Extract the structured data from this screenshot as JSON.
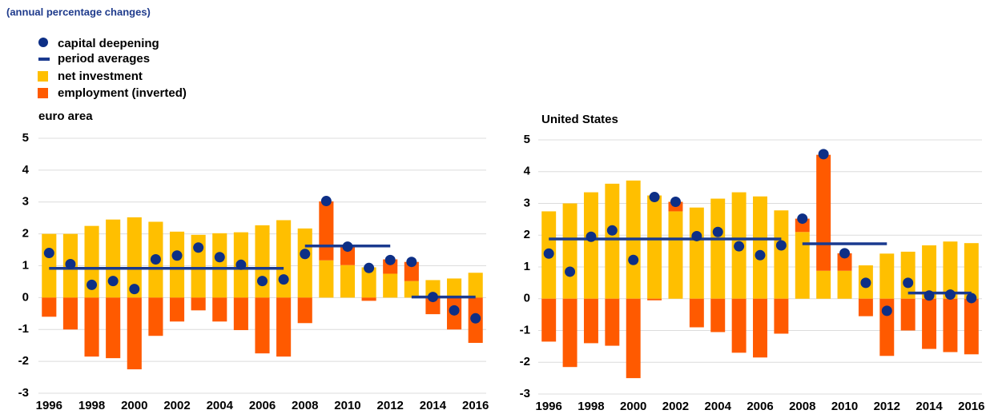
{
  "subtitle": "(annual percentage changes)",
  "chart_data": [
    {
      "type": "bar",
      "title": "euro area",
      "x": [
        1996,
        1997,
        1998,
        1999,
        2000,
        2001,
        2002,
        2003,
        2004,
        2005,
        2006,
        2007,
        2008,
        2009,
        2010,
        2011,
        2012,
        2013,
        2014,
        2015,
        2016
      ],
      "xlim": [
        1995.5,
        2016.5
      ],
      "xticks": [
        1996,
        1998,
        2000,
        2002,
        2004,
        2006,
        2008,
        2010,
        2012,
        2014,
        2016
      ],
      "ylim": [
        -3,
        5
      ],
      "yticks": [
        -3,
        -2,
        -1,
        0,
        1,
        2,
        3,
        4,
        5
      ],
      "grid": true,
      "stacked": true,
      "series": [
        {
          "name": "capital deepening",
          "type": "scatter",
          "color": "#0d2f86",
          "values": [
            1.4,
            1.05,
            0.4,
            0.52,
            0.27,
            1.2,
            1.32,
            1.57,
            1.27,
            1.03,
            0.52,
            0.57,
            1.37,
            3.03,
            1.6,
            0.93,
            1.18,
            1.12,
            0.02,
            -0.4,
            -0.65
          ]
        },
        {
          "name": "net investment",
          "type": "bar",
          "color": "#ffbf00",
          "values": [
            2.0,
            2.0,
            2.25,
            2.45,
            2.52,
            2.38,
            2.07,
            1.97,
            2.02,
            2.05,
            2.27,
            2.43,
            2.17,
            1.17,
            1.02,
            0.95,
            0.75,
            0.52,
            0.55,
            0.6,
            0.78
          ]
        },
        {
          "name": "employment (inverted)",
          "type": "bar",
          "color": "#ff5a00",
          "values": [
            -0.6,
            -1.0,
            -1.85,
            -1.9,
            -2.25,
            -1.2,
            -0.75,
            -0.4,
            -0.75,
            -1.02,
            -1.75,
            -1.85,
            -0.8,
            1.85,
            0.58,
            -0.1,
            0.45,
            0.6,
            -0.52,
            -1.0,
            -1.42
          ]
        }
      ],
      "period_averages": {
        "name": "period averages",
        "color": "#1a3a8f",
        "segments": [
          {
            "x": [
              1996,
              2007
            ],
            "value": 0.92
          },
          {
            "x": [
              2008,
              2012
            ],
            "value": 1.62
          },
          {
            "x": [
              2013,
              2016
            ],
            "value": 0.02
          }
        ]
      }
    },
    {
      "type": "bar",
      "title": "United States",
      "x": [
        1996,
        1997,
        1998,
        1999,
        2000,
        2001,
        2002,
        2003,
        2004,
        2005,
        2006,
        2007,
        2008,
        2009,
        2010,
        2011,
        2012,
        2013,
        2014,
        2015,
        2016
      ],
      "xlim": [
        1995.5,
        2016.5
      ],
      "xticks": [
        1996,
        1998,
        2000,
        2002,
        2004,
        2006,
        2008,
        2010,
        2012,
        2014,
        2016
      ],
      "ylim": [
        -3,
        5
      ],
      "yticks": [
        -3,
        -2,
        -1,
        0,
        1,
        2,
        3,
        4,
        5
      ],
      "grid": true,
      "stacked": true,
      "series": [
        {
          "type": "scatter",
          "color": "#0d2f86",
          "values": [
            1.42,
            0.85,
            1.95,
            2.15,
            1.22,
            3.2,
            3.05,
            1.97,
            2.1,
            1.65,
            1.37,
            1.68,
            2.52,
            4.55,
            1.43,
            0.5,
            -0.38,
            0.5,
            0.1,
            0.13,
            0.02
          ]
        },
        {
          "type": "bar",
          "color": "#ffbf00",
          "values": [
            2.75,
            3.0,
            3.35,
            3.62,
            3.72,
            3.25,
            2.75,
            2.87,
            3.15,
            3.35,
            3.22,
            2.78,
            2.1,
            0.88,
            0.88,
            1.05,
            1.42,
            1.48,
            1.68,
            1.8,
            1.75
          ]
        },
        {
          "type": "bar",
          "color": "#ff5a00",
          "values": [
            -1.35,
            -2.15,
            -1.4,
            -1.48,
            -2.5,
            -0.05,
            0.3,
            -0.9,
            -1.05,
            -1.7,
            -1.85,
            -1.1,
            0.42,
            3.65,
            0.55,
            -0.55,
            -1.8,
            -1.0,
            -1.58,
            -1.68,
            -1.75
          ]
        }
      ],
      "period_averages": {
        "color": "#1a3a8f",
        "segments": [
          {
            "x": [
              1996,
              2007
            ],
            "value": 1.88
          },
          {
            "x": [
              2008,
              2012
            ],
            "value": 1.73
          },
          {
            "x": [
              2013,
              2016
            ],
            "value": 0.18
          }
        ]
      }
    }
  ]
}
